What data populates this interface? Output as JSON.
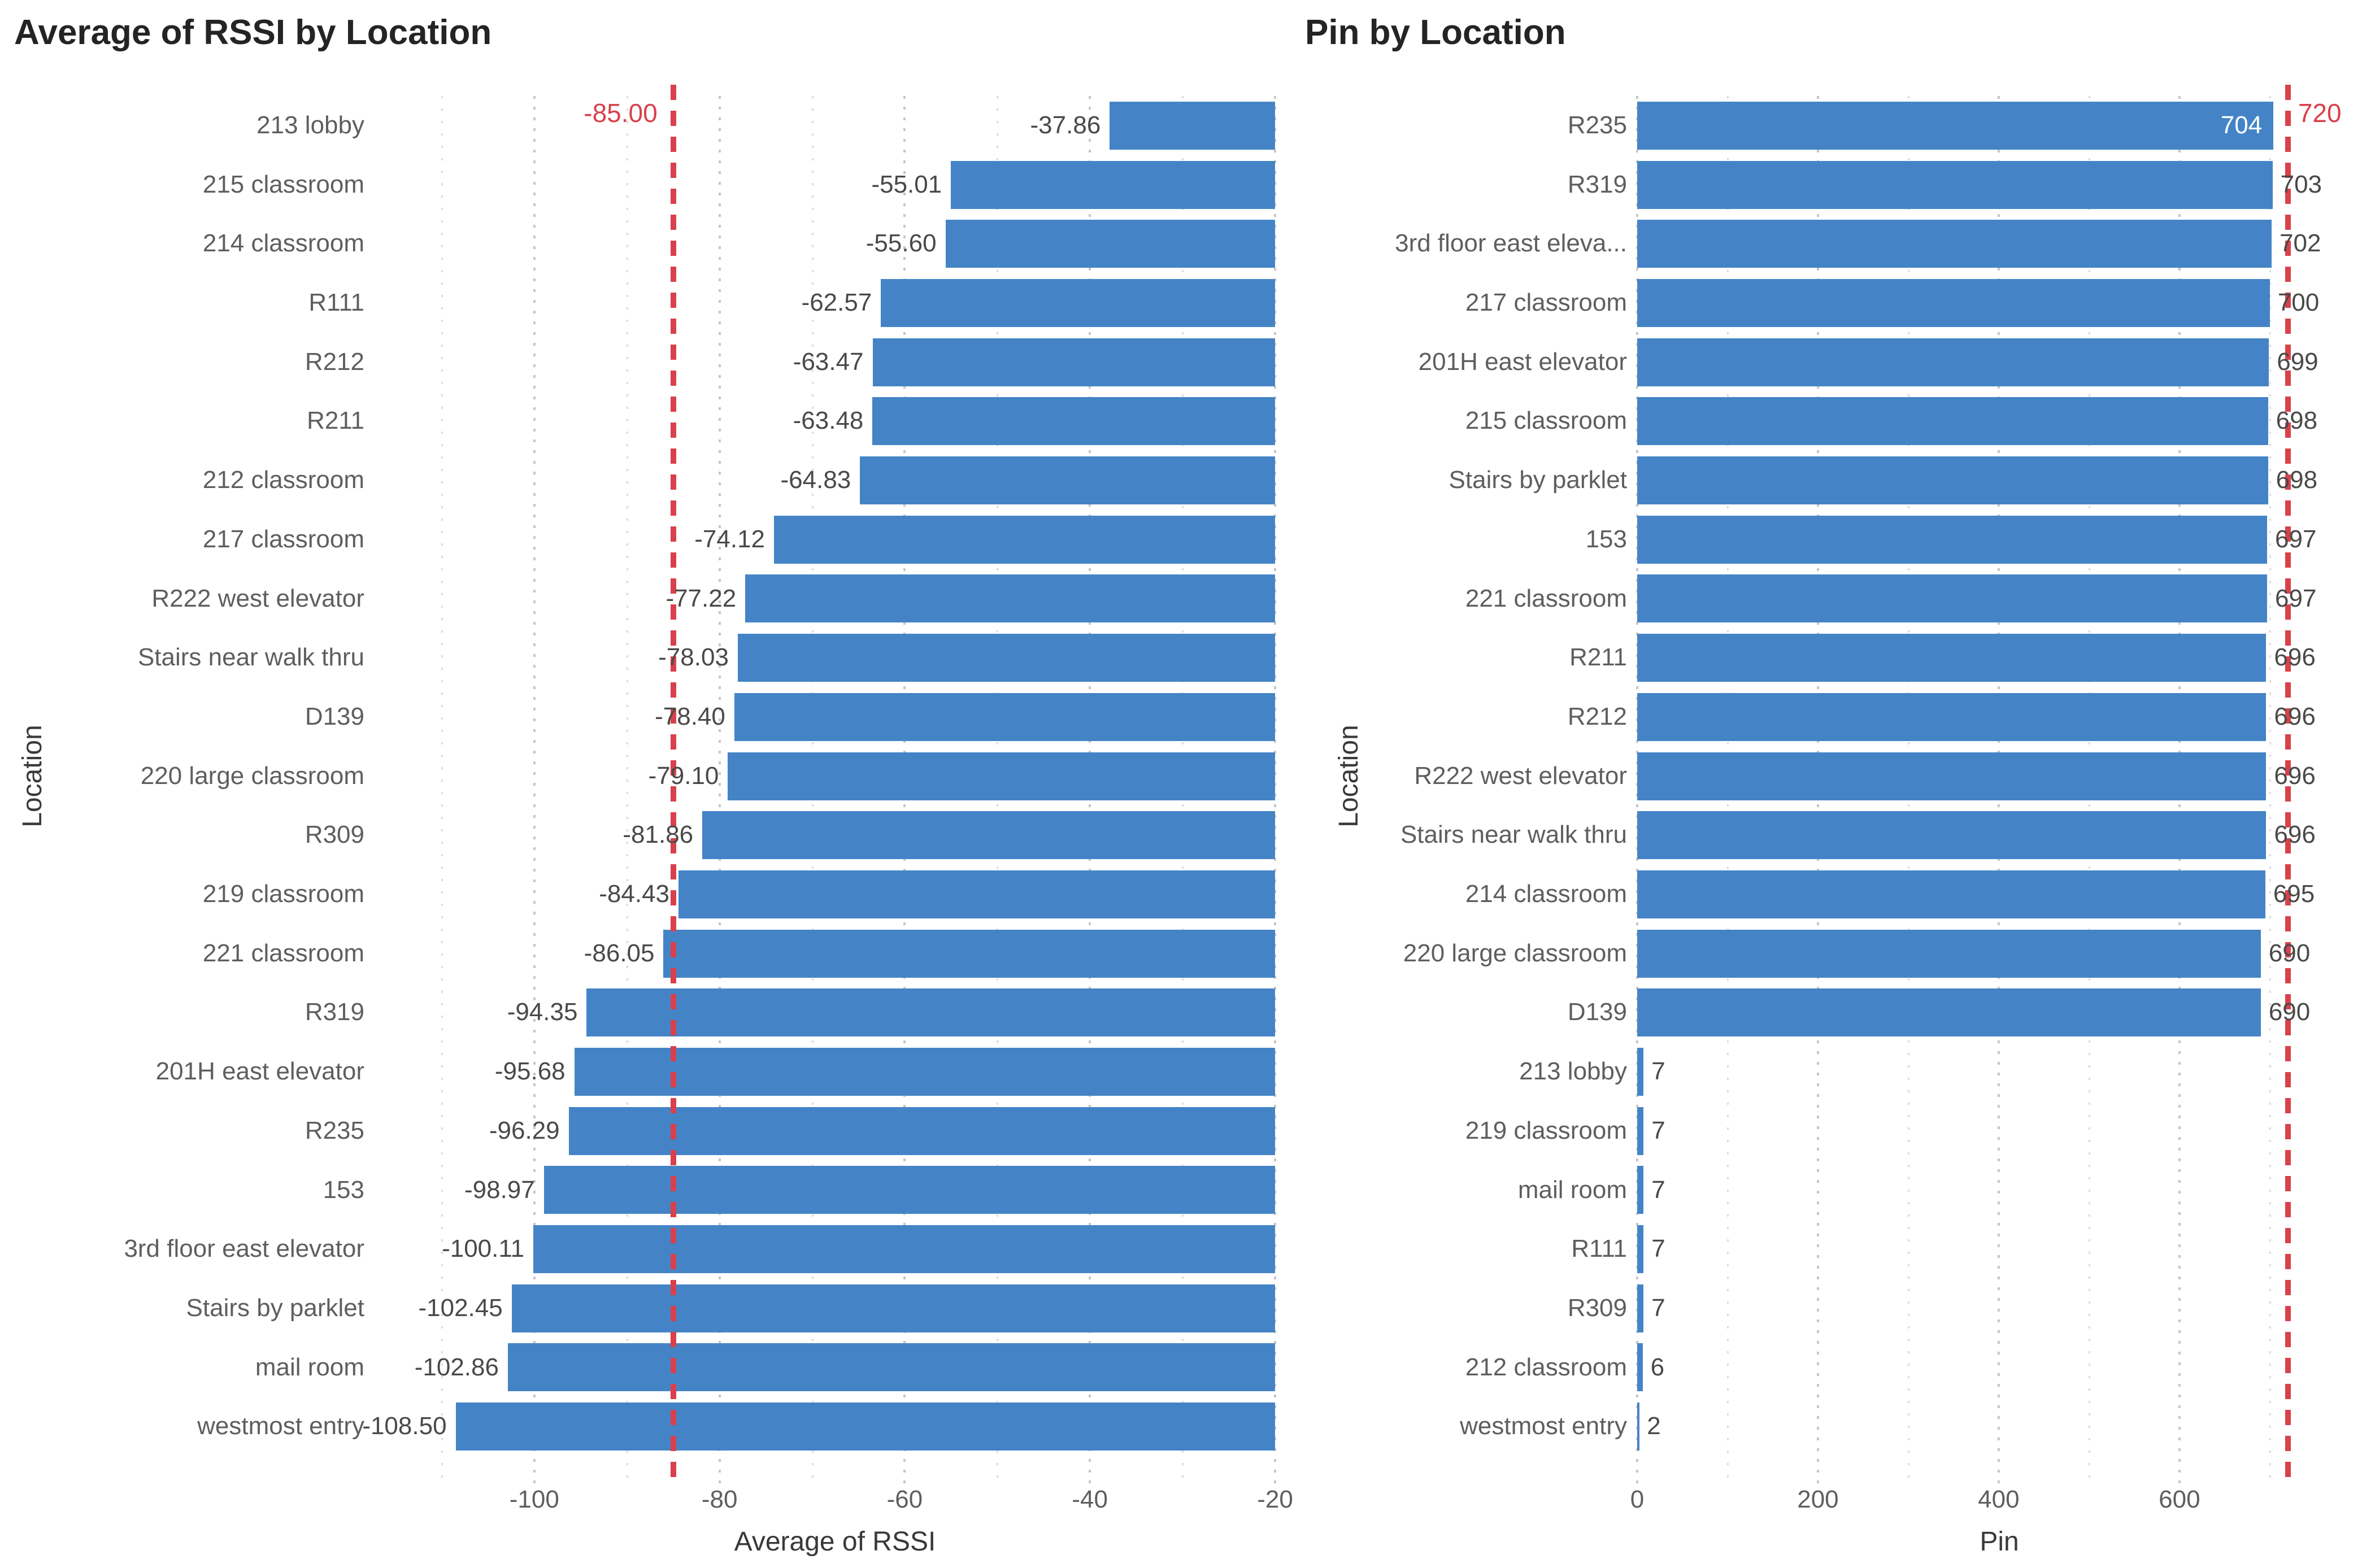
{
  "colors": {
    "bar": "#4484C6",
    "reference_line": "#D8414C",
    "reference_text": "#D8414C",
    "grid_major": "#c8c6c4",
    "grid_minor": "#dcdad8",
    "title_text": "#252423",
    "axis_text": "#5f5e5c",
    "value_text": "#4a4948",
    "value_text_inside": "#ffffff",
    "background": "#ffffff"
  },
  "chart_data": [
    {
      "type": "bar",
      "orientation": "horizontal",
      "title": "Average of RSSI by Location",
      "xlabel": "Average of RSSI",
      "ylabel": "Location",
      "xlim": [
        -115,
        -20
      ],
      "bar_anchor": -20,
      "grid": true,
      "xticks": [
        {
          "value": -100,
          "label": "-100"
        },
        {
          "value": -80,
          "label": "-80"
        },
        {
          "value": -60,
          "label": "-60"
        },
        {
          "value": -40,
          "label": "-40"
        },
        {
          "value": -20,
          "label": "-20"
        }
      ],
      "minor_xticks": [
        -110,
        -90,
        -70,
        -50,
        -30
      ],
      "reference_line": {
        "value": -85,
        "label": "-85.00"
      },
      "items": [
        {
          "category": "213 lobby",
          "value": -37.86,
          "label": "-37.86",
          "label_inside": false
        },
        {
          "category": "215 classroom",
          "value": -55.01,
          "label": "-55.01",
          "label_inside": false
        },
        {
          "category": "214 classroom",
          "value": -55.6,
          "label": "-55.60",
          "label_inside": false
        },
        {
          "category": "R111",
          "value": -62.57,
          "label": "-62.57",
          "label_inside": false
        },
        {
          "category": "R212",
          "value": -63.47,
          "label": "-63.47",
          "label_inside": false
        },
        {
          "category": "R211",
          "value": -63.48,
          "label": "-63.48",
          "label_inside": false
        },
        {
          "category": "212 classroom",
          "value": -64.83,
          "label": "-64.83",
          "label_inside": false
        },
        {
          "category": "217 classroom",
          "value": -74.12,
          "label": "-74.12",
          "label_inside": false
        },
        {
          "category": "R222 west elevator",
          "value": -77.22,
          "label": "-77.22",
          "label_inside": false
        },
        {
          "category": "Stairs near walk thru",
          "value": -78.03,
          "label": "-78.03",
          "label_inside": false
        },
        {
          "category": "D139",
          "value": -78.4,
          "label": "-78.40",
          "label_inside": false
        },
        {
          "category": "220 large classroom",
          "value": -79.1,
          "label": "-79.10",
          "label_inside": false
        },
        {
          "category": "R309",
          "value": -81.86,
          "label": "-81.86",
          "label_inside": false
        },
        {
          "category": "219 classroom",
          "value": -84.43,
          "label": "-84.43",
          "label_inside": false
        },
        {
          "category": "221 classroom",
          "value": -86.05,
          "label": "-86.05",
          "label_inside": false
        },
        {
          "category": "R319",
          "value": -94.35,
          "label": "-94.35",
          "label_inside": false
        },
        {
          "category": "201H east elevator",
          "value": -95.68,
          "label": "-95.68",
          "label_inside": false
        },
        {
          "category": "R235",
          "value": -96.29,
          "label": "-96.29",
          "label_inside": false
        },
        {
          "category": "153",
          "value": -98.97,
          "label": "-98.97",
          "label_inside": false
        },
        {
          "category": "3rd floor east elevator",
          "value": -100.11,
          "label": "-100.11",
          "label_inside": false
        },
        {
          "category": "Stairs by parklet",
          "value": -102.45,
          "label": "-102.45",
          "label_inside": false
        },
        {
          "category": "mail room",
          "value": -102.86,
          "label": "-102.86",
          "label_inside": false
        },
        {
          "category": "westmost entry",
          "value": -108.5,
          "label": "-108.50",
          "label_inside": false
        }
      ]
    },
    {
      "type": "bar",
      "orientation": "horizontal",
      "title": "Pin by Location",
      "xlabel": "Pin",
      "ylabel": "Location",
      "xlim": [
        0,
        802
      ],
      "bar_anchor": 0,
      "grid": true,
      "xticks": [
        {
          "value": 0,
          "label": "0"
        },
        {
          "value": 200,
          "label": "200"
        },
        {
          "value": 400,
          "label": "400"
        },
        {
          "value": 600,
          "label": "600"
        }
      ],
      "minor_xticks": [
        100,
        300,
        500,
        700
      ],
      "reference_line": {
        "value": 720,
        "label": "720"
      },
      "items": [
        {
          "category": "R235",
          "value": 704,
          "label": "704",
          "label_inside": true
        },
        {
          "category": "R319",
          "value": 703,
          "label": "703",
          "label_inside": false
        },
        {
          "category": "3rd floor east eleva...",
          "value": 702,
          "label": "702",
          "label_inside": false
        },
        {
          "category": "217 classroom",
          "value": 700,
          "label": "700",
          "label_inside": false
        },
        {
          "category": "201H east elevator",
          "value": 699,
          "label": "699",
          "label_inside": false
        },
        {
          "category": "215 classroom",
          "value": 698,
          "label": "698",
          "label_inside": false
        },
        {
          "category": "Stairs by parklet",
          "value": 698,
          "label": "698",
          "label_inside": false
        },
        {
          "category": "153",
          "value": 697,
          "label": "697",
          "label_inside": false
        },
        {
          "category": "221 classroom",
          "value": 697,
          "label": "697",
          "label_inside": false
        },
        {
          "category": "R211",
          "value": 696,
          "label": "696",
          "label_inside": false
        },
        {
          "category": "R212",
          "value": 696,
          "label": "696",
          "label_inside": false
        },
        {
          "category": "R222 west elevator",
          "value": 696,
          "label": "696",
          "label_inside": false
        },
        {
          "category": "Stairs near walk thru",
          "value": 696,
          "label": "696",
          "label_inside": false
        },
        {
          "category": "214 classroom",
          "value": 695,
          "label": "695",
          "label_inside": false
        },
        {
          "category": "220 large classroom",
          "value": 690,
          "label": "690",
          "label_inside": false
        },
        {
          "category": "D139",
          "value": 690,
          "label": "690",
          "label_inside": false
        },
        {
          "category": "213 lobby",
          "value": 7,
          "label": "7",
          "label_inside": false
        },
        {
          "category": "219 classroom",
          "value": 7,
          "label": "7",
          "label_inside": false
        },
        {
          "category": "mail room",
          "value": 7,
          "label": "7",
          "label_inside": false
        },
        {
          "category": "R111",
          "value": 7,
          "label": "7",
          "label_inside": false
        },
        {
          "category": "R309",
          "value": 7,
          "label": "7",
          "label_inside": false
        },
        {
          "category": "212 classroom",
          "value": 6,
          "label": "6",
          "label_inside": false
        },
        {
          "category": "westmost entry",
          "value": 2,
          "label": "2",
          "label_inside": false
        }
      ]
    }
  ]
}
